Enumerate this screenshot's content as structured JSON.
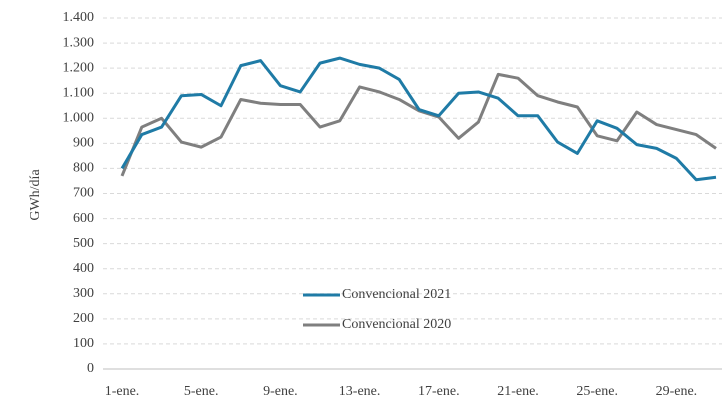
{
  "chart_data": {
    "type": "line",
    "y_label": "GWh/día",
    "categories": [
      "1-ene.",
      null,
      null,
      null,
      "5-ene.",
      null,
      null,
      null,
      "9-ene.",
      null,
      null,
      null,
      "13-ene.",
      null,
      null,
      null,
      "17-ene.",
      null,
      null,
      null,
      "21-ene.",
      null,
      null,
      null,
      "25-ene.",
      null,
      null,
      null,
      "29-ene.",
      null,
      null
    ],
    "series": [
      {
        "name": "Convencional 2021",
        "color": "#1f7ba6",
        "values": [
          800,
          935,
          965,
          1090,
          1095,
          1050,
          1210,
          1230,
          1130,
          1105,
          1220,
          1240,
          1215,
          1200,
          1155,
          1035,
          1010,
          1100,
          1105,
          1080,
          1010,
          1010,
          905,
          860,
          990,
          960,
          895,
          880,
          840,
          755,
          765
        ]
      },
      {
        "name": "Convencional 2020",
        "color": "#7f7f7f",
        "values": [
          770,
          965,
          1000,
          905,
          885,
          925,
          1075,
          1060,
          1055,
          1055,
          965,
          990,
          1125,
          1105,
          1075,
          1030,
          1005,
          920,
          985,
          1175,
          1160,
          1090,
          1065,
          1045,
          930,
          910,
          1025,
          975,
          955,
          935,
          880
        ]
      }
    ],
    "ylim": [
      0,
      1400
    ],
    "yticks": [
      0,
      100,
      200,
      300,
      400,
      500,
      600,
      700,
      800,
      900,
      {
        "value": 1000,
        "label": "1.000"
      },
      {
        "value": 1100,
        "label": "1.100"
      },
      {
        "value": 1200,
        "label": "1.200"
      },
      {
        "value": 1300,
        "label": "1.300"
      },
      {
        "value": 1400,
        "label": "1.400"
      }
    ],
    "grid": true,
    "legend": "center"
  }
}
